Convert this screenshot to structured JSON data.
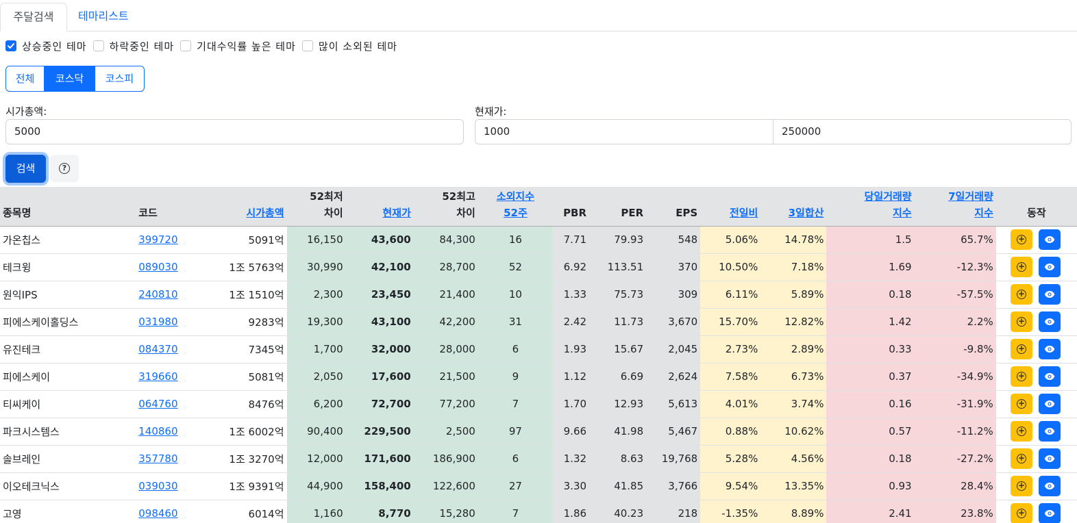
{
  "tabs": [
    {
      "label": "주달검색"
    },
    {
      "label": "테마리스트"
    }
  ],
  "filters": [
    {
      "label": "상승중인 테마",
      "checked": true
    },
    {
      "label": "하락중인 테마",
      "checked": false
    },
    {
      "label": "기대수익률 높은 테마",
      "checked": false
    },
    {
      "label": "많이 소외된 테마",
      "checked": false
    }
  ],
  "market": {
    "options": [
      "전체",
      "코스닥",
      "코스피"
    ],
    "selected": "코스닥"
  },
  "form": {
    "market_cap_label": "시가총액:",
    "market_cap_value": "5000",
    "price_label": "현재가:",
    "price_min": "1000",
    "price_max": "250000",
    "search_label": "검색",
    "help_icon": "question-circle-icon"
  },
  "table": {
    "headers": {
      "name": "종목명",
      "code": "코드",
      "market_cap": "시가총액",
      "low52_line1": "52최저",
      "low52_line2": "차이",
      "price": "현재가",
      "high52_line1": "52최고",
      "high52_line2": "차이",
      "neglect_line1": "소외지수",
      "neglect_line2": "52주",
      "pbr": "PBR",
      "per": "PER",
      "eps": "EPS",
      "prev_change": "전일비",
      "three_day": "3일합산",
      "vol_today_line1": "당일거래량",
      "vol_today_line2": "지수",
      "vol_7d_line1": "7일거래량",
      "vol_7d_line2": "지수",
      "action": "동작"
    },
    "rows": [
      {
        "name": "가온칩스",
        "code": "399720",
        "cap": "5091억",
        "low": "16,150",
        "price": "43,600",
        "high": "84,300",
        "neglect": "16",
        "pbr": "7.71",
        "per": "79.93",
        "eps": "548",
        "prev": "5.06%",
        "three": "14.78%",
        "vtoday": "1.5",
        "v7": "65.7%"
      },
      {
        "name": "테크윙",
        "code": "089030",
        "cap": "1조 5763억",
        "low": "30,990",
        "price": "42,100",
        "high": "28,700",
        "neglect": "52",
        "pbr": "6.92",
        "per": "113.51",
        "eps": "370",
        "prev": "10.50%",
        "three": "7.18%",
        "vtoday": "1.69",
        "v7": "-12.3%"
      },
      {
        "name": "원익IPS",
        "code": "240810",
        "cap": "1조 1510억",
        "low": "2,300",
        "price": "23,450",
        "high": "21,400",
        "neglect": "10",
        "pbr": "1.33",
        "per": "75.73",
        "eps": "309",
        "prev": "6.11%",
        "three": "5.89%",
        "vtoday": "0.18",
        "v7": "-57.5%"
      },
      {
        "name": "피에스케이홀딩스",
        "code": "031980",
        "cap": "9283억",
        "low": "19,300",
        "price": "43,100",
        "high": "42,200",
        "neglect": "31",
        "pbr": "2.42",
        "per": "11.73",
        "eps": "3,670",
        "prev": "15.70%",
        "three": "12.82%",
        "vtoday": "1.42",
        "v7": "2.2%"
      },
      {
        "name": "유진테크",
        "code": "084370",
        "cap": "7345억",
        "low": "1,700",
        "price": "32,000",
        "high": "28,000",
        "neglect": "6",
        "pbr": "1.93",
        "per": "15.67",
        "eps": "2,045",
        "prev": "2.73%",
        "three": "2.89%",
        "vtoday": "0.33",
        "v7": "-9.8%"
      },
      {
        "name": "피에스케이",
        "code": "319660",
        "cap": "5081억",
        "low": "2,050",
        "price": "17,600",
        "high": "21,500",
        "neglect": "9",
        "pbr": "1.12",
        "per": "6.69",
        "eps": "2,624",
        "prev": "7.58%",
        "three": "6.73%",
        "vtoday": "0.37",
        "v7": "-34.9%"
      },
      {
        "name": "티씨케이",
        "code": "064760",
        "cap": "8476억",
        "low": "6,200",
        "price": "72,700",
        "high": "77,200",
        "neglect": "7",
        "pbr": "1.70",
        "per": "12.93",
        "eps": "5,613",
        "prev": "4.01%",
        "three": "3.74%",
        "vtoday": "0.16",
        "v7": "-31.9%"
      },
      {
        "name": "파크시스템스",
        "code": "140860",
        "cap": "1조 6002억",
        "low": "90,400",
        "price": "229,500",
        "high": "2,500",
        "neglect": "97",
        "pbr": "9.66",
        "per": "41.98",
        "eps": "5,467",
        "prev": "0.88%",
        "three": "10.62%",
        "vtoday": "0.57",
        "v7": "-11.2%"
      },
      {
        "name": "솔브레인",
        "code": "357780",
        "cap": "1조 3270억",
        "low": "12,000",
        "price": "171,600",
        "high": "186,900",
        "neglect": "6",
        "pbr": "1.32",
        "per": "8.63",
        "eps": "19,768",
        "prev": "5.28%",
        "three": "4.56%",
        "vtoday": "0.18",
        "v7": "-27.2%"
      },
      {
        "name": "이오테크닉스",
        "code": "039030",
        "cap": "1조 9391억",
        "low": "44,900",
        "price": "158,400",
        "high": "122,600",
        "neglect": "27",
        "pbr": "3.30",
        "per": "41.85",
        "eps": "3,766",
        "prev": "9.54%",
        "three": "13.35%",
        "vtoday": "0.93",
        "v7": "28.4%"
      },
      {
        "name": "고영",
        "code": "098460",
        "cap": "6014억",
        "low": "1,160",
        "price": "8,770",
        "high": "15,280",
        "neglect": "7",
        "pbr": "1.86",
        "per": "40.23",
        "eps": "218",
        "prev": "-1.35%",
        "three": "8.89%",
        "vtoday": "2.41",
        "v7": "23.8%"
      }
    ],
    "row_action_icons": [
      "plus-circle-icon",
      "eye-icon"
    ]
  },
  "colors": {
    "primary": "#0d6efd",
    "warning": "#ffc107",
    "green_bg": "#d1e7dd",
    "gray_bg": "#e2e3e5",
    "yellow_bg": "#fff3cd",
    "pink_bg": "#f8d7da"
  }
}
